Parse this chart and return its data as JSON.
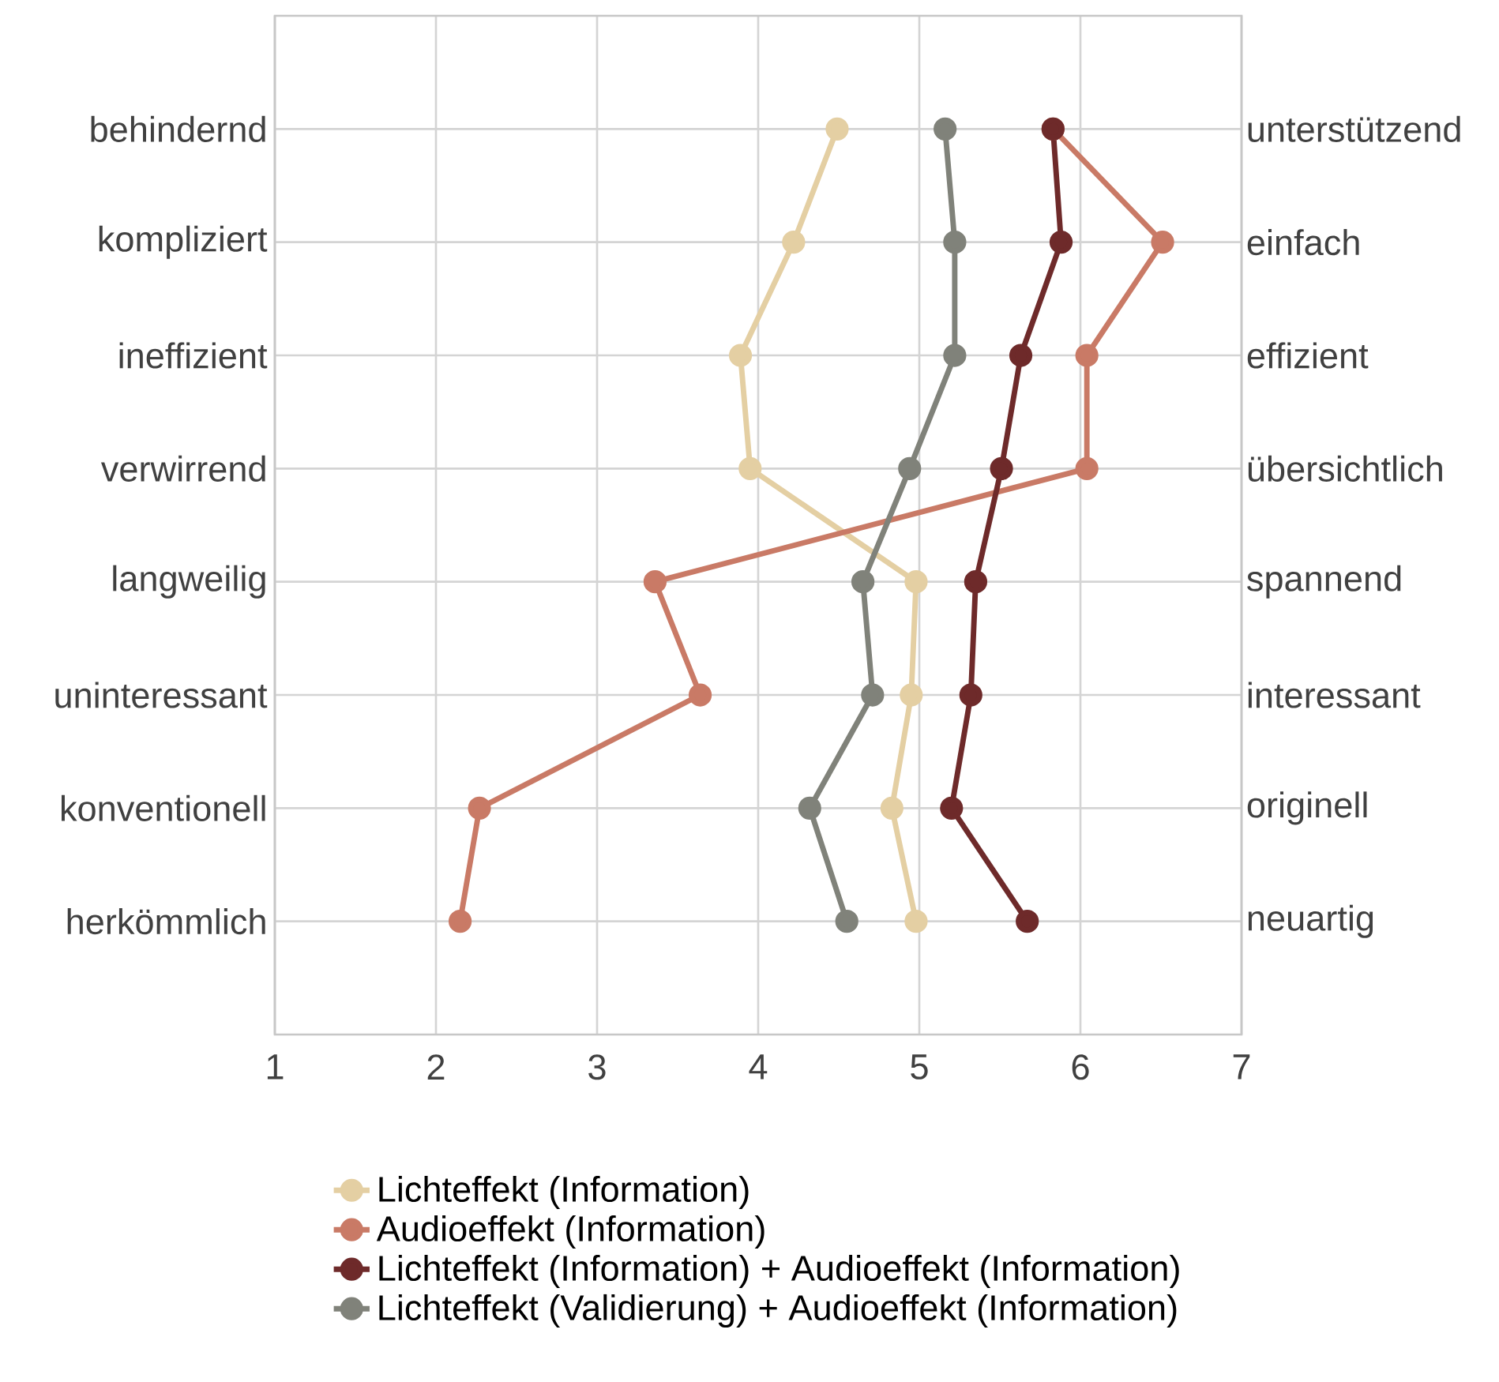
{
  "chart_data": {
    "type": "line",
    "orientation": "horizontal",
    "categories": [
      "behindernd",
      "kompliziert",
      "ineffizient",
      "verwirrend",
      "langweilig",
      "uninteressant",
      "konventionell",
      "herkömmlich"
    ],
    "y2_categories": [
      "unterstützend",
      "einfach",
      "effizient",
      "übersichtlich",
      "spannend",
      "interessant",
      "originell",
      "neuartig"
    ],
    "xlim": [
      1,
      7
    ],
    "xticks": [
      1,
      2,
      3,
      4,
      5,
      6,
      7
    ],
    "series": [
      {
        "name": "Lichteffekt (Information)",
        "color": "#e4cfa3",
        "values": [
          4.49,
          4.22,
          3.89,
          3.95,
          4.98,
          4.95,
          4.83,
          4.98
        ]
      },
      {
        "name": "Audioeffekt (Information)",
        "color": "#c97a66",
        "values": [
          5.83,
          6.51,
          6.04,
          6.04,
          3.36,
          3.64,
          2.27,
          2.15
        ]
      },
      {
        "name": "Lichteffekt (Information) + Audioeffekt (Information)",
        "color": "#6e2a2a",
        "values": [
          5.83,
          5.88,
          5.63,
          5.51,
          5.35,
          5.32,
          5.2,
          5.67
        ]
      },
      {
        "name": "Lichteffekt (Validierung) + Audioeffekt (Information)",
        "color": "#80827a",
        "values": [
          5.16,
          5.22,
          5.22,
          4.94,
          4.65,
          4.71,
          4.32,
          4.55
        ]
      }
    ],
    "grid": true,
    "legend": "bottom",
    "marker": "circle",
    "line_style": "solid"
  }
}
